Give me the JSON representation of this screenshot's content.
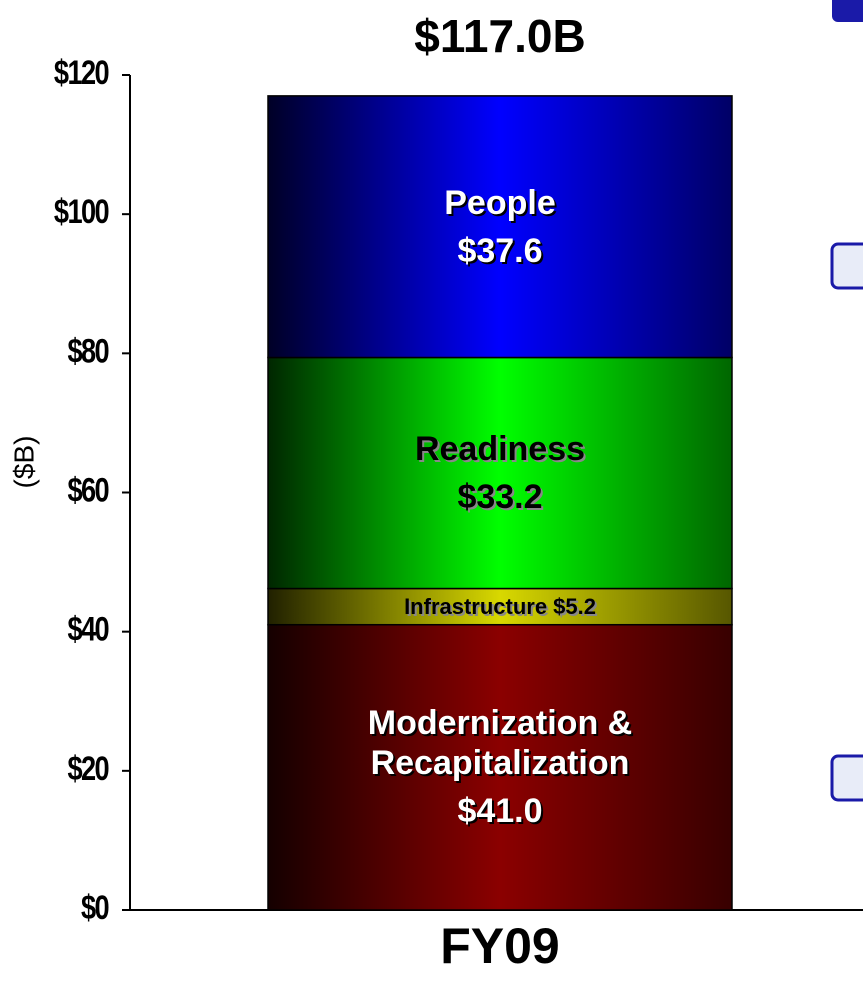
{
  "chart_data": {
    "type": "stacked_bar",
    "title": "$117.0B",
    "y_axis_label": "($B)",
    "categories": [
      "FY09"
    ],
    "series": [
      {
        "name": "Modernization & Recapitalization",
        "color": "#8b0000",
        "text_color": "#ffffff",
        "values": [
          41.0
        ],
        "value_labels": [
          "$41.0"
        ]
      },
      {
        "name": "Infrastructure",
        "color": "#d8d800",
        "text_color": "#000000",
        "values": [
          5.2
        ],
        "value_labels": [
          "$5.2"
        ]
      },
      {
        "name": "Readiness",
        "color": "#00ff00",
        "text_color": "#000000",
        "values": [
          33.2
        ],
        "value_labels": [
          "$33.2"
        ]
      },
      {
        "name": "People",
        "color": "#0000ff",
        "text_color": "#ffffff",
        "values": [
          37.6
        ],
        "value_labels": [
          "$37.6"
        ]
      }
    ],
    "ylim": [
      0,
      120
    ],
    "yticks": [
      {
        "value": 0,
        "label": "$0"
      },
      {
        "value": 20,
        "label": "$20"
      },
      {
        "value": 40,
        "label": "$40"
      },
      {
        "value": 60,
        "label": "$60"
      },
      {
        "value": 80,
        "label": "$80"
      },
      {
        "value": 100,
        "label": "$100"
      },
      {
        "value": 120,
        "label": "$120"
      }
    ]
  }
}
